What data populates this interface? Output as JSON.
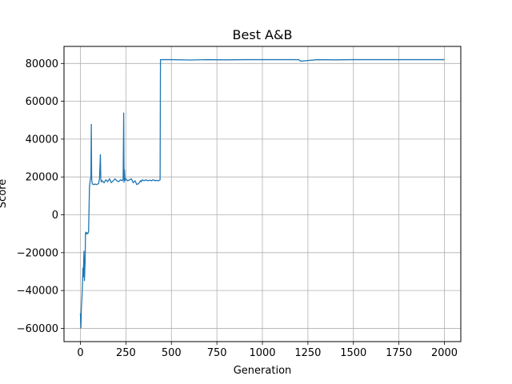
{
  "chart_data": {
    "type": "line",
    "title": "Best A&B",
    "xlabel": "Generation",
    "ylabel": "Score",
    "xlim": [
      -90,
      2090
    ],
    "ylim": [
      -67000,
      89000
    ],
    "xticks": [
      0,
      250,
      500,
      750,
      1000,
      1250,
      1500,
      1750,
      2000
    ],
    "yticks": [
      -60000,
      -40000,
      -20000,
      0,
      20000,
      40000,
      60000,
      80000
    ],
    "grid": true,
    "line_color": "#1f77b4",
    "series": [
      {
        "x": [
          0,
          3,
          5,
          8,
          10,
          12,
          14,
          16,
          18,
          20,
          22,
          24,
          26,
          28,
          30,
          32,
          35,
          40,
          45,
          50,
          55,
          58,
          60,
          62,
          65,
          70,
          80,
          90,
          100,
          105,
          110,
          112,
          115,
          120,
          130,
          140,
          150,
          160,
          170,
          180,
          190,
          200,
          210,
          220,
          230,
          235,
          238,
          240,
          242,
          245,
          250,
          260,
          270,
          280,
          290,
          300,
          310,
          320,
          330,
          335,
          340,
          350,
          360,
          370,
          380,
          390,
          400,
          410,
          420,
          430,
          438,
          440,
          442,
          500,
          600,
          700,
          800,
          900,
          1000,
          1100,
          1200,
          1210,
          1300,
          1400,
          1500,
          1600,
          1700,
          1800,
          1900,
          2000
        ],
        "y": [
          -52000,
          -60000,
          -50000,
          -45000,
          -40000,
          -35000,
          -28000,
          -33000,
          -25000,
          -19000,
          -35000,
          -30000,
          -25000,
          -10000,
          -9000,
          -10000,
          -9500,
          -10000,
          -9000,
          15000,
          19000,
          20000,
          48000,
          19000,
          16500,
          16000,
          16200,
          16000,
          16500,
          19000,
          32000,
          19000,
          17500,
          18000,
          17000,
          18500,
          17500,
          19000,
          17000,
          18000,
          19000,
          18000,
          17500,
          18500,
          18000,
          19000,
          54000,
          17000,
          24000,
          18000,
          19000,
          18000,
          18500,
          19000,
          17000,
          18000,
          16000,
          16500,
          18000,
          17500,
          18500,
          18000,
          18500,
          18000,
          18300,
          18000,
          18500,
          18000,
          18200,
          18000,
          18500,
          82000,
          82000,
          82000,
          81800,
          82000,
          81900,
          82000,
          82000,
          82000,
          82000,
          81200,
          82000,
          81900,
          82000,
          82000,
          82000,
          82000,
          82000,
          82000
        ]
      }
    ]
  }
}
